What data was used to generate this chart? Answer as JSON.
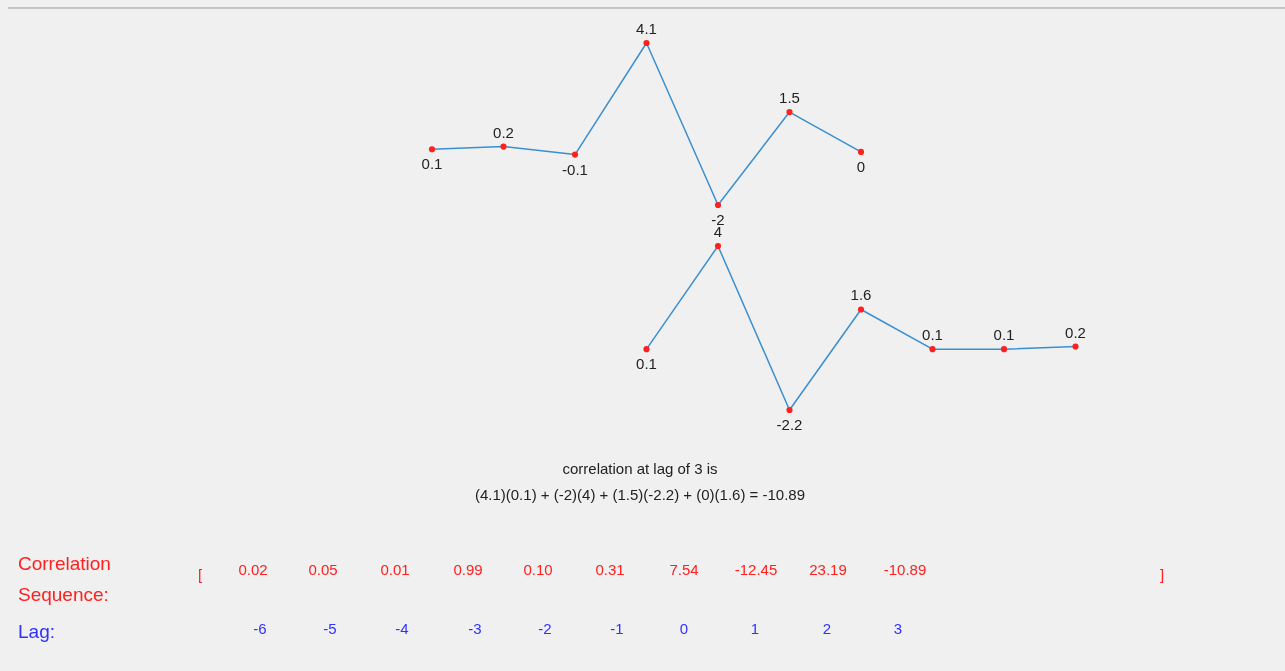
{
  "chart_data": [
    {
      "type": "line",
      "categories": [
        null,
        null,
        null,
        null,
        null,
        null,
        null,
        null,
        null,
        null
      ],
      "data_labels": true,
      "marker": "circle",
      "series": [
        {
          "color": "#3a8fd0",
          "values": [
            0.1,
            0.2,
            -0.1,
            4.1,
            -2,
            1.5,
            0,
            null,
            null,
            null
          ]
        }
      ]
    },
    {
      "type": "line",
      "categories": [
        null,
        null,
        null,
        null,
        null,
        null,
        null,
        null,
        null,
        null
      ],
      "data_labels": true,
      "marker": "circle",
      "series": [
        {
          "color": "#3a8fd0",
          "values": [
            null,
            null,
            null,
            0.1,
            4,
            -2.2,
            1.6,
            0.1,
            0.1,
            0.2
          ]
        }
      ],
      "annotations": [
        "correlation at lag of 3 is",
        "(4.1)(0.1) + (-2)(4) + (1.5)(-2.2) + (0)(1.6) = -10.89",
        "Correlation Sequence:",
        "[",
        "0.02",
        "0.05",
        "0.01",
        "0.99",
        "0.10",
        "0.31",
        "7.54",
        "-12.45",
        "23.19",
        "-10.89",
        "]",
        "Lag:",
        "-6",
        "-5",
        "-4",
        "-3",
        "-2",
        "-1",
        "0",
        "1",
        "2",
        "3"
      ]
    }
  ]
}
